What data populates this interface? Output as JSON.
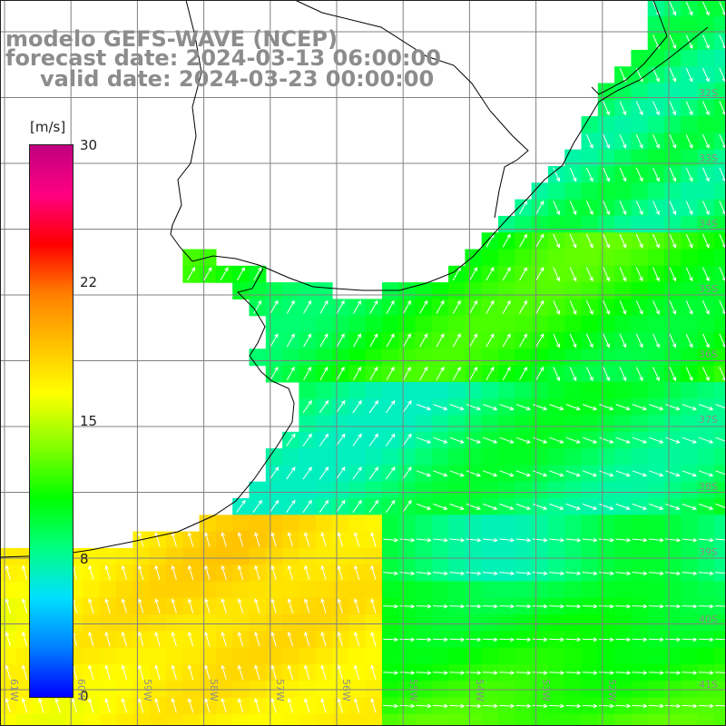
{
  "title": {
    "model": "modelo GEFS-WAVE (NCEP)",
    "forecast": "forecast date: 2024-03-13 06:00:00",
    "valid": "valid date: 2024-03-23 00:00:00"
  },
  "colorbar": {
    "unit": "[m/s]",
    "min": 0,
    "max": 30,
    "labels": [
      "30",
      "22",
      "15",
      "8",
      "0"
    ],
    "colors": [
      "#0000ff",
      "#0080ff",
      "#00e0ff",
      "#00ff80",
      "#00ff00",
      "#80ff00",
      "#ffff00",
      "#ffc000",
      "#ff8000",
      "#ff0000",
      "#ff0080",
      "#c00080"
    ]
  },
  "map": {
    "lon_labels": [
      "61W",
      "60W",
      "59W",
      "58W",
      "57W",
      "56W",
      "55W",
      "54W",
      "53W",
      "52W"
    ],
    "lat_labels": [
      "32S",
      "33S",
      "34S",
      "35S",
      "36S",
      "37S",
      "38S",
      "39S",
      "40S",
      "41S"
    ],
    "land_color": "#ffffff",
    "grid_color": "#808080",
    "coast_color": "#000000",
    "arrow_color": "#ffffff"
  }
}
